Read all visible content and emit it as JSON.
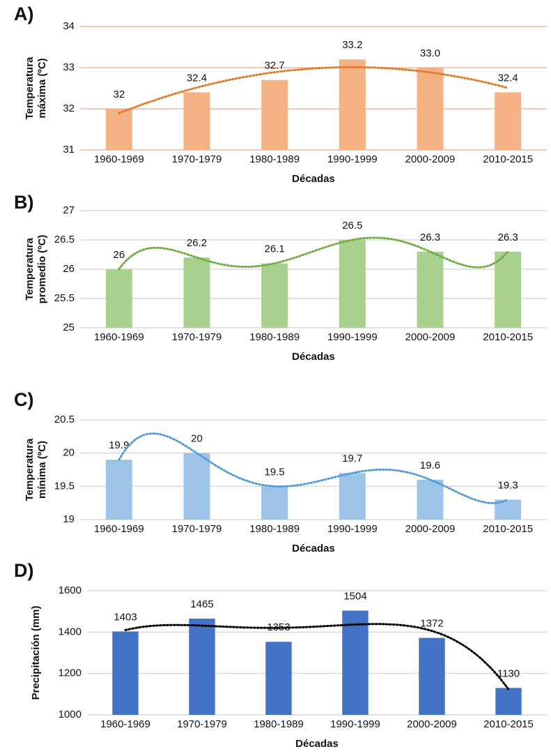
{
  "chart_data": [
    {
      "type": "bar",
      "panel": "A)",
      "ylabel": [
        "Temperatura",
        "máxima (ºC)"
      ],
      "xlabel": "Décadas",
      "categories": [
        "1960-1969",
        "1970-1979",
        "1980-1989",
        "1990-1999",
        "2000-2009",
        "2010-2015"
      ],
      "values": [
        32,
        32.4,
        32.7,
        33.2,
        33.0,
        32.4
      ],
      "value_labels": [
        "32",
        "32.4",
        "32.7",
        "33.2",
        "33.0",
        "32.4"
      ],
      "color": "#f4b183",
      "ylim": [
        31,
        34
      ],
      "yticks": [
        31,
        32,
        33,
        34
      ],
      "grid": true,
      "grid_color": "#f2b9a0",
      "trendline": {
        "order": 2,
        "color": "#e07b2a"
      }
    },
    {
      "type": "bar",
      "panel": "B)",
      "ylabel": [
        "Temperatura",
        "promedio (ºC)"
      ],
      "xlabel": "Décadas",
      "categories": [
        "1960-1969",
        "1970-1979",
        "1980-1989",
        "1990-1999",
        "2000-2009",
        "2010-2015"
      ],
      "values": [
        26,
        26.2,
        26.1,
        26.5,
        26.3,
        26.3
      ],
      "color": "#a9d18e",
      "ylim": [
        25,
        27
      ],
      "yticks": [
        25,
        25.5,
        26,
        26.5,
        27
      ],
      "grid": true,
      "grid_color": "#d9d9d9",
      "trendline": {
        "order": 5,
        "color": "#70ad47"
      }
    },
    {
      "type": "bar",
      "panel": "C)",
      "ylabel": [
        "Temperatura",
        "mínima (ºC)"
      ],
      "xlabel": "Décadas",
      "categories": [
        "1960-1969",
        "1970-1979",
        "1980-1989",
        "1990-1999",
        "2000-2009",
        "2010-2015"
      ],
      "values": [
        19.9,
        20,
        19.5,
        19.7,
        19.6,
        19.3
      ],
      "color": "#9dc3e6",
      "ylim": [
        19,
        20.5
      ],
      "yticks": [
        19,
        19.5,
        20,
        20.5
      ],
      "grid": true,
      "grid_color": "#d9d9d9",
      "trendline": {
        "order": 5,
        "color": "#5b9bd5"
      }
    },
    {
      "type": "bar",
      "panel": "D)",
      "ylabel": [
        "Precipitación (mm)"
      ],
      "xlabel": "Décadas",
      "categories": [
        "1960-1969",
        "1970-1979",
        "1980-1989",
        "1990-1999",
        "2000-2009",
        "2010-2015"
      ],
      "values": [
        1403,
        1465,
        1353,
        1504,
        1372,
        1130
      ],
      "color": "#4472c4",
      "ylim": [
        1000,
        1600
      ],
      "yticks": [
        1000,
        1200,
        1400,
        1600
      ],
      "grid": true,
      "grid_color": "#d9d9d9",
      "trendline": {
        "order": 4,
        "color": "#000000"
      }
    }
  ]
}
